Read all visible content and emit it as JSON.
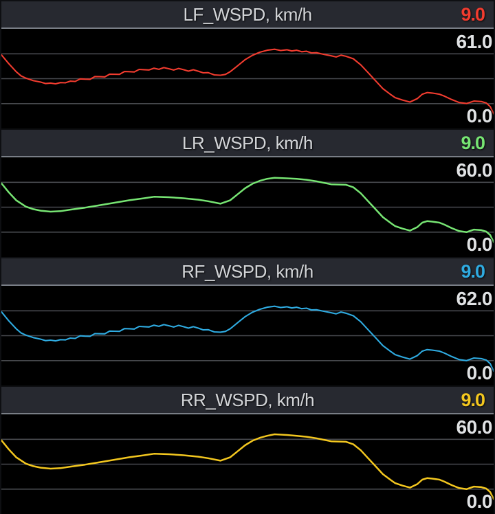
{
  "colors": {
    "background": "#0e0f12",
    "panel_header_bg": "#272930",
    "header_divider": "#797e86",
    "plot_bg": "#000000",
    "gridline": "#47494e",
    "title_text": "#d2d4d7",
    "label_text": "#e0e2e4",
    "lf_red": "#f23c2f",
    "lr_green": "#77e573",
    "rf_blue": "#2fabe1",
    "rr_yellow": "#f3c71f"
  },
  "chart_data": {
    "type": "line",
    "layout": "4 stacked panels, one line series each, black plot background",
    "xlabel": "",
    "ylabel": "",
    "grid": "3 horizontal gridlines per panel at 25%, 50%, 75% of height",
    "gridlines_pct": [
      25,
      50,
      75
    ],
    "legend": "none; channel name in panel header, current value at header right, session max/min labels inside plot at right",
    "x_axis": "time window, unlabeled",
    "x_pct": [
      0,
      1.5,
      3,
      5,
      6.5,
      8,
      10,
      12,
      14,
      17,
      20,
      23,
      26,
      29,
      31,
      34,
      37,
      40,
      42,
      44.5,
      46.5,
      48,
      49.5,
      51,
      52.5,
      54,
      55.5,
      58,
      60,
      62,
      64,
      65.5,
      67,
      70,
      71.5,
      73,
      74.5,
      76,
      77.5,
      79,
      80,
      81.5,
      83,
      84.5,
      85.5,
      86.5,
      87.5,
      89,
      90,
      91.5,
      93,
      94.5,
      96,
      97.5,
      98.5,
      99.3,
      100
    ],
    "panels": [
      {
        "name": "LF_WSPD",
        "unit": "km/h",
        "title": "LF_WSPD, km/h",
        "current_value": "9.0",
        "session_max_label": "61.0",
        "session_min_label": "0.0",
        "ylim": [
          0,
          61
        ],
        "color": "#f23c2f",
        "noisy": true,
        "values_kmh": [
          45.1,
          39.7,
          34.8,
          30.8,
          29.3,
          28.4,
          27.8,
          28.1,
          29.0,
          30.2,
          31.7,
          33.2,
          34.8,
          36.0,
          36.9,
          36.6,
          36.0,
          35.1,
          34.2,
          32.6,
          34.8,
          38.4,
          42.1,
          44.8,
          46.7,
          47.9,
          48.5,
          48.2,
          47.9,
          47.3,
          46.4,
          45.4,
          44.5,
          44.2,
          42.7,
          39.0,
          34.2,
          29.3,
          24.4,
          21.0,
          18.9,
          17.4,
          16.2,
          18.3,
          21.0,
          22.0,
          21.7,
          21.0,
          19.8,
          17.7,
          15.9,
          15.3,
          16.8,
          16.5,
          15.6,
          13.4,
          9.0
        ]
      },
      {
        "name": "LR_WSPD",
        "unit": "km/h",
        "title": "LR_WSPD, km/h",
        "current_value": "9.0",
        "session_max_label": "60.0",
        "session_min_label": "0.0",
        "ylim": [
          0,
          60
        ],
        "color": "#77e573",
        "noisy": false,
        "values_kmh": [
          44.4,
          39.0,
          34.2,
          30.3,
          28.8,
          27.9,
          27.3,
          27.6,
          28.5,
          29.7,
          31.2,
          32.7,
          34.2,
          35.4,
          36.3,
          36.0,
          35.4,
          34.5,
          33.6,
          32.1,
          34.2,
          37.8,
          41.4,
          44.1,
          45.9,
          47.1,
          47.7,
          47.4,
          47.1,
          46.5,
          45.6,
          44.7,
          43.8,
          43.5,
          42.0,
          38.4,
          33.6,
          28.8,
          24.0,
          20.7,
          18.6,
          17.1,
          15.9,
          18.0,
          20.7,
          21.6,
          21.3,
          20.7,
          19.5,
          17.4,
          15.6,
          15.0,
          16.5,
          16.2,
          15.3,
          13.2,
          9.0
        ]
      },
      {
        "name": "RF_WSPD",
        "unit": "km/h",
        "title": "RF_WSPD, km/h",
        "current_value": "9.0",
        "session_max_label": "62.0",
        "session_min_label": "0.0",
        "ylim": [
          0,
          62
        ],
        "color": "#2fabe1",
        "noisy": true,
        "values_kmh": [
          45.9,
          40.3,
          35.3,
          31.3,
          29.8,
          28.8,
          28.2,
          28.5,
          29.5,
          30.7,
          32.2,
          33.8,
          35.3,
          36.6,
          37.5,
          37.2,
          36.6,
          35.7,
          34.7,
          33.2,
          35.3,
          39.1,
          42.8,
          45.6,
          47.4,
          48.7,
          49.3,
          49.0,
          48.7,
          48.1,
          47.1,
          46.2,
          45.3,
          45.0,
          43.4,
          39.7,
          34.7,
          29.8,
          24.8,
          21.4,
          19.2,
          17.7,
          16.4,
          18.6,
          21.4,
          22.3,
          22.0,
          21.4,
          20.2,
          18.0,
          16.1,
          15.5,
          17.1,
          16.7,
          15.8,
          13.6,
          9.0
        ]
      },
      {
        "name": "RR_WSPD",
        "unit": "km/h",
        "title": "RR_WSPD, km/h",
        "current_value": "9.0",
        "session_max_label": "60.0",
        "session_min_label": "0.0",
        "ylim": [
          0,
          60
        ],
        "color": "#f3c71f",
        "noisy": false,
        "values_kmh": [
          44.4,
          39.0,
          34.2,
          30.3,
          28.8,
          27.9,
          27.3,
          27.6,
          28.5,
          29.7,
          31.2,
          32.7,
          34.2,
          35.4,
          36.3,
          36.0,
          35.4,
          34.5,
          33.6,
          32.1,
          34.2,
          37.8,
          41.4,
          44.1,
          45.9,
          47.1,
          48.0,
          47.6,
          47.1,
          46.5,
          45.6,
          44.7,
          43.8,
          43.5,
          42.0,
          38.4,
          33.6,
          28.8,
          24.0,
          20.7,
          18.6,
          17.1,
          15.9,
          18.0,
          20.7,
          21.6,
          21.3,
          20.7,
          19.5,
          17.4,
          15.6,
          15.0,
          16.5,
          16.2,
          15.3,
          13.2,
          9.0
        ]
      }
    ]
  }
}
